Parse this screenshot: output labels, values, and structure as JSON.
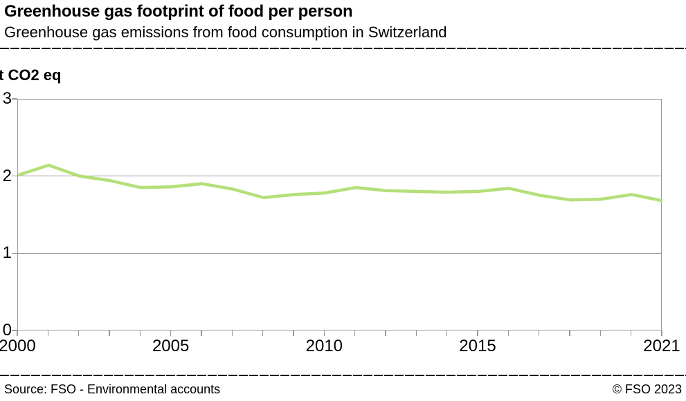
{
  "header": {
    "title": "Greenhouse gas footprint of food per person",
    "subtitle": "Greenhouse gas emissions from food consumption in Switzerland"
  },
  "chart": {
    "unit_label": "t CO2 eq"
  },
  "chart_data": {
    "type": "line",
    "title": "Greenhouse gas footprint of food per person",
    "subtitle": "Greenhouse gas emissions from food consumption in Switzerland",
    "xlabel": "",
    "ylabel": "t CO2 eq",
    "ylim": [
      0,
      3
    ],
    "y_ticks": [
      0,
      1,
      2,
      3
    ],
    "x_tick_labels": [
      2000,
      2005,
      2010,
      2015,
      2021
    ],
    "grid": "horizontal",
    "legend_position": "none",
    "x": [
      2000,
      2001,
      2002,
      2003,
      2004,
      2005,
      2006,
      2007,
      2008,
      2009,
      2010,
      2011,
      2012,
      2013,
      2014,
      2015,
      2016,
      2017,
      2018,
      2019,
      2020,
      2021
    ],
    "series": [
      {
        "name": "Greenhouse gas emissions from food consumption in Switzerland",
        "color": "#b5df79",
        "values": [
          2.02,
          2.15,
          2.01,
          1.95,
          1.86,
          1.87,
          1.91,
          1.84,
          1.73,
          1.77,
          1.79,
          1.86,
          1.82,
          1.81,
          1.8,
          1.81,
          1.85,
          1.76,
          1.7,
          1.71,
          1.77,
          1.69
        ]
      }
    ]
  },
  "colors": {
    "line": "#b5df79",
    "grid": "#999999",
    "text": "#000000"
  },
  "footer": {
    "source": "Source: FSO - Environmental accounts",
    "copyright": "© FSO 2023"
  }
}
